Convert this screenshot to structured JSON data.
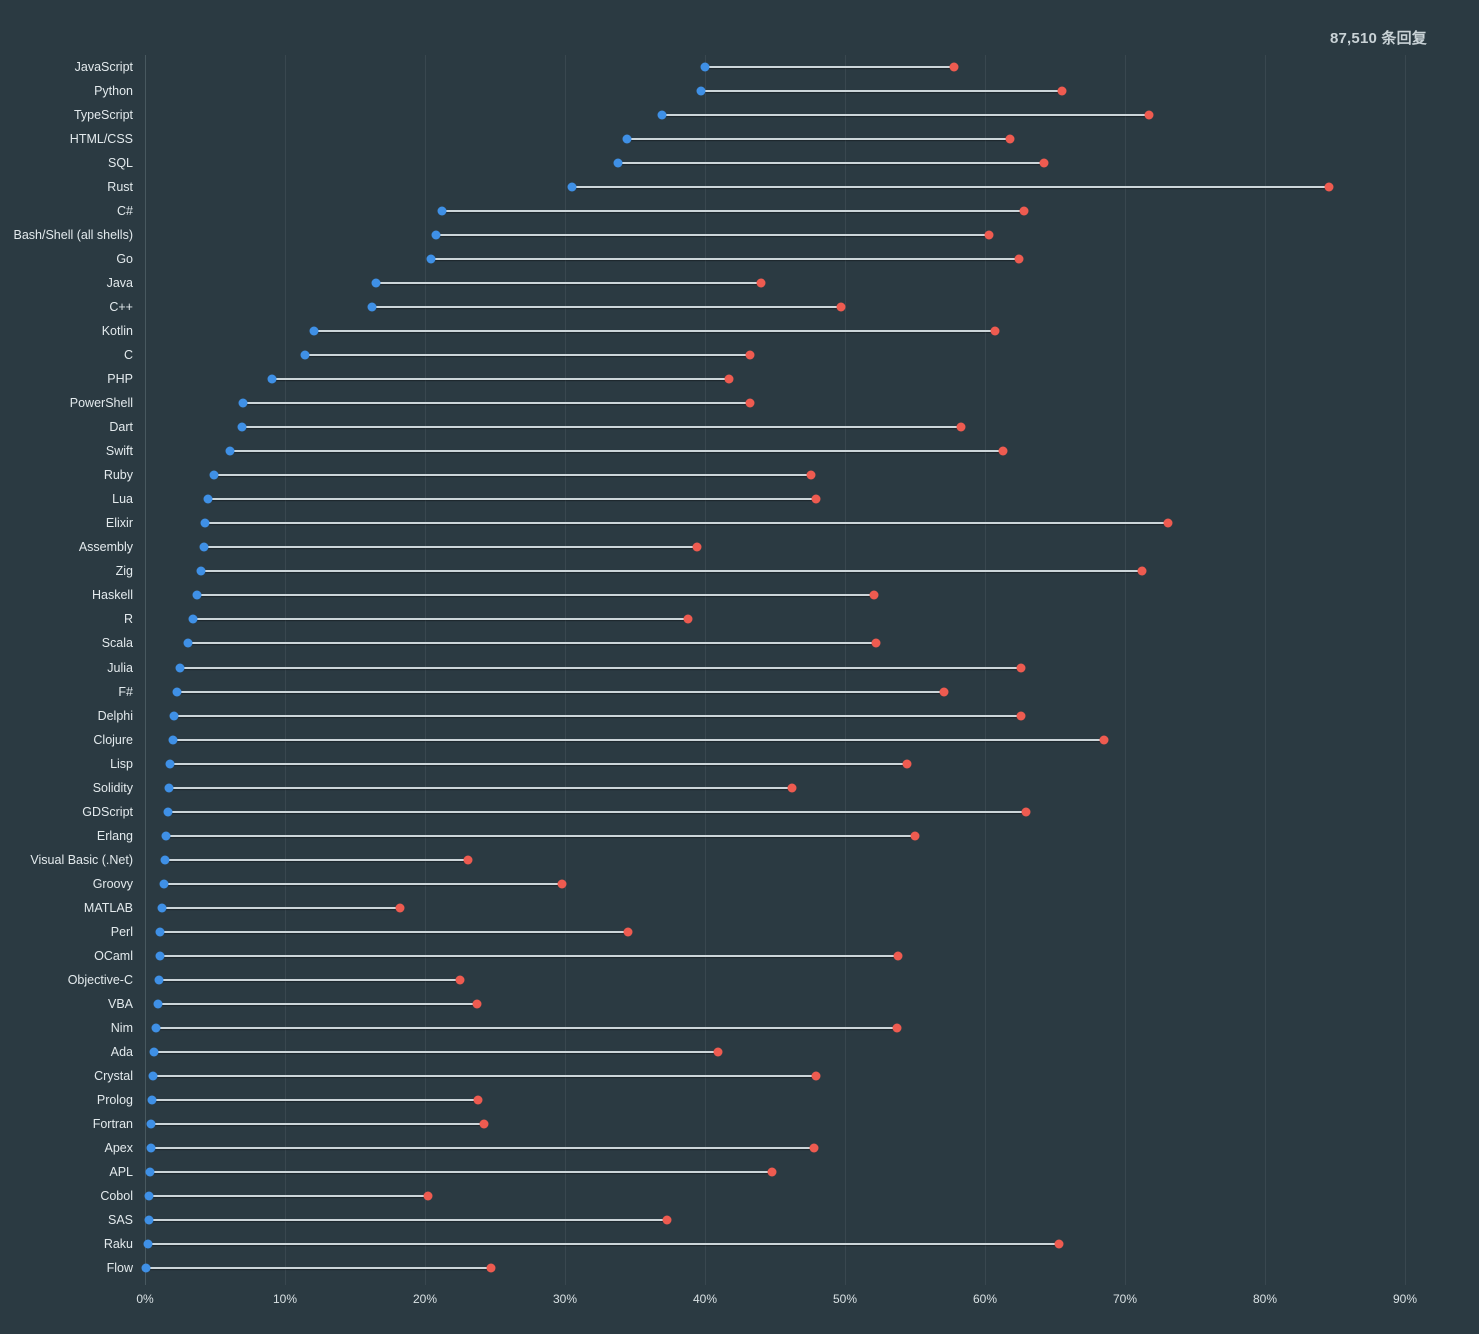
{
  "header": {
    "response_count_label": "87,510 条回复"
  },
  "colors": {
    "background": "#2b3a42",
    "gridline": "#39474f",
    "axis_line": "#48585f",
    "connector": "#ccd5d9",
    "blue_dot": "#3f90e6",
    "red_dot": "#ee5b50",
    "category_label": "#e3eaed",
    "tick_label": "#d9e1e4",
    "title": "#c9d2d6"
  },
  "chart_data": {
    "type": "scatter",
    "variant": "dumbbell",
    "title": "87,510 条回复",
    "xlabel": "",
    "ylabel": "",
    "xlim": [
      0,
      94.5
    ],
    "x_tick_labels": [
      "0%",
      "10%",
      "20%",
      "30%",
      "40%",
      "50%",
      "60%",
      "70%",
      "80%",
      "90%"
    ],
    "x_tick_values": [
      0,
      10,
      20,
      30,
      40,
      50,
      60,
      70,
      80,
      90
    ],
    "grid": "vertical-only",
    "legend": "none",
    "categories": [
      "JavaScript",
      "Python",
      "TypeScript",
      "HTML/CSS",
      "SQL",
      "Rust",
      "C#",
      "Bash/Shell (all shells)",
      "Go",
      "Java",
      "C++",
      "Kotlin",
      "C",
      "PHP",
      "PowerShell",
      "Dart",
      "Swift",
      "Ruby",
      "Lua",
      "Elixir",
      "Assembly",
      "Zig",
      "Haskell",
      "R",
      "Scala",
      "Julia",
      "F#",
      "Delphi",
      "Clojure",
      "Lisp",
      "Solidity",
      "GDScript",
      "Erlang",
      "Visual Basic (.Net)",
      "Groovy",
      "MATLAB",
      "Perl",
      "OCaml",
      "Objective-C",
      "VBA",
      "Nim",
      "Ada",
      "Crystal",
      "Prolog",
      "Fortran",
      "Apex",
      "APL",
      "Cobol",
      "SAS",
      "Raku",
      "Flow"
    ],
    "series": [
      {
        "name": "blue",
        "color": "#3f90e6",
        "values": [
          40.0,
          39.7,
          36.9,
          34.4,
          33.8,
          30.5,
          21.2,
          20.8,
          20.4,
          16.5,
          16.2,
          12.1,
          11.4,
          9.1,
          7.0,
          6.9,
          6.1,
          4.9,
          4.5,
          4.3,
          4.2,
          4.0,
          3.7,
          3.4,
          3.1,
          2.5,
          2.3,
          2.1,
          2.0,
          1.8,
          1.7,
          1.65,
          1.5,
          1.4,
          1.35,
          1.2,
          1.1,
          1.05,
          1.0,
          0.95,
          0.75,
          0.65,
          0.55,
          0.5,
          0.45,
          0.4,
          0.35,
          0.3,
          0.28,
          0.2,
          0.1
        ]
      },
      {
        "name": "red",
        "color": "#ee5b50",
        "values": [
          57.8,
          65.5,
          71.7,
          61.8,
          64.2,
          84.6,
          62.8,
          60.3,
          62.4,
          44.0,
          49.7,
          60.7,
          43.2,
          41.7,
          43.2,
          58.3,
          61.3,
          47.6,
          47.9,
          73.1,
          39.4,
          71.2,
          52.1,
          38.8,
          52.2,
          62.6,
          57.1,
          62.6,
          68.5,
          54.4,
          46.2,
          62.9,
          55.0,
          23.1,
          29.8,
          18.2,
          34.5,
          53.8,
          22.5,
          23.7,
          53.7,
          40.9,
          47.9,
          23.8,
          24.2,
          47.8,
          44.8,
          20.2,
          37.3,
          65.3,
          24.7
        ]
      }
    ]
  }
}
